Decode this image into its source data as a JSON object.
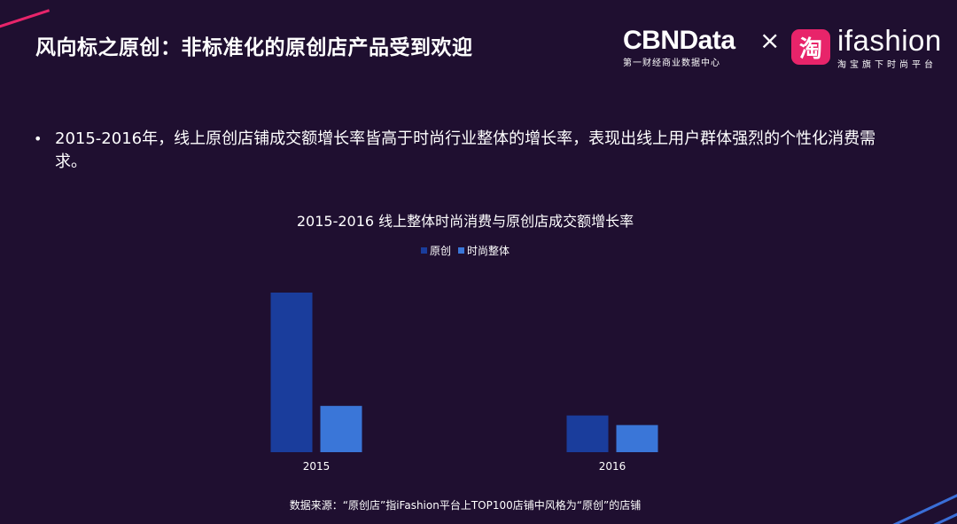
{
  "slide": {
    "title": "风向标之原创：非标准化的原创店产品受到欢迎",
    "bullet": "2015-2016年，线上原创店铺成交额增长率皆高于时尚行业整体的增长率，表现出线上用户群体强烈的个性化消费需求。",
    "source": "数据来源：“原创店”指iFashion平台上TOP100店铺中风格为“原创”的店铺"
  },
  "logos": {
    "cbn_main": "CBNData",
    "cbn_sub": "第一财经商业数据中心",
    "cross": "×",
    "tao_char": "淘",
    "ifashion_main": "ifashion",
    "ifashion_sub": "淘宝旗下时尚平台"
  },
  "colors": {
    "background": "#1f0f30",
    "accent_pink": "#e8246a",
    "series_original": "#1a3d9c",
    "series_overall": "#3a76d8"
  },
  "chart_data": {
    "type": "bar",
    "title": "2015-2016 线上整体时尚消费与原创店成交额增长率",
    "categories": [
      "2015",
      "2016"
    ],
    "series": [
      {
        "name": "原创",
        "values": [
          100,
          23
        ]
      },
      {
        "name": "时尚整体",
        "values": [
          29,
          17
        ]
      }
    ],
    "ylim": [
      0,
      100
    ],
    "grid": false,
    "legend": "top-center"
  }
}
